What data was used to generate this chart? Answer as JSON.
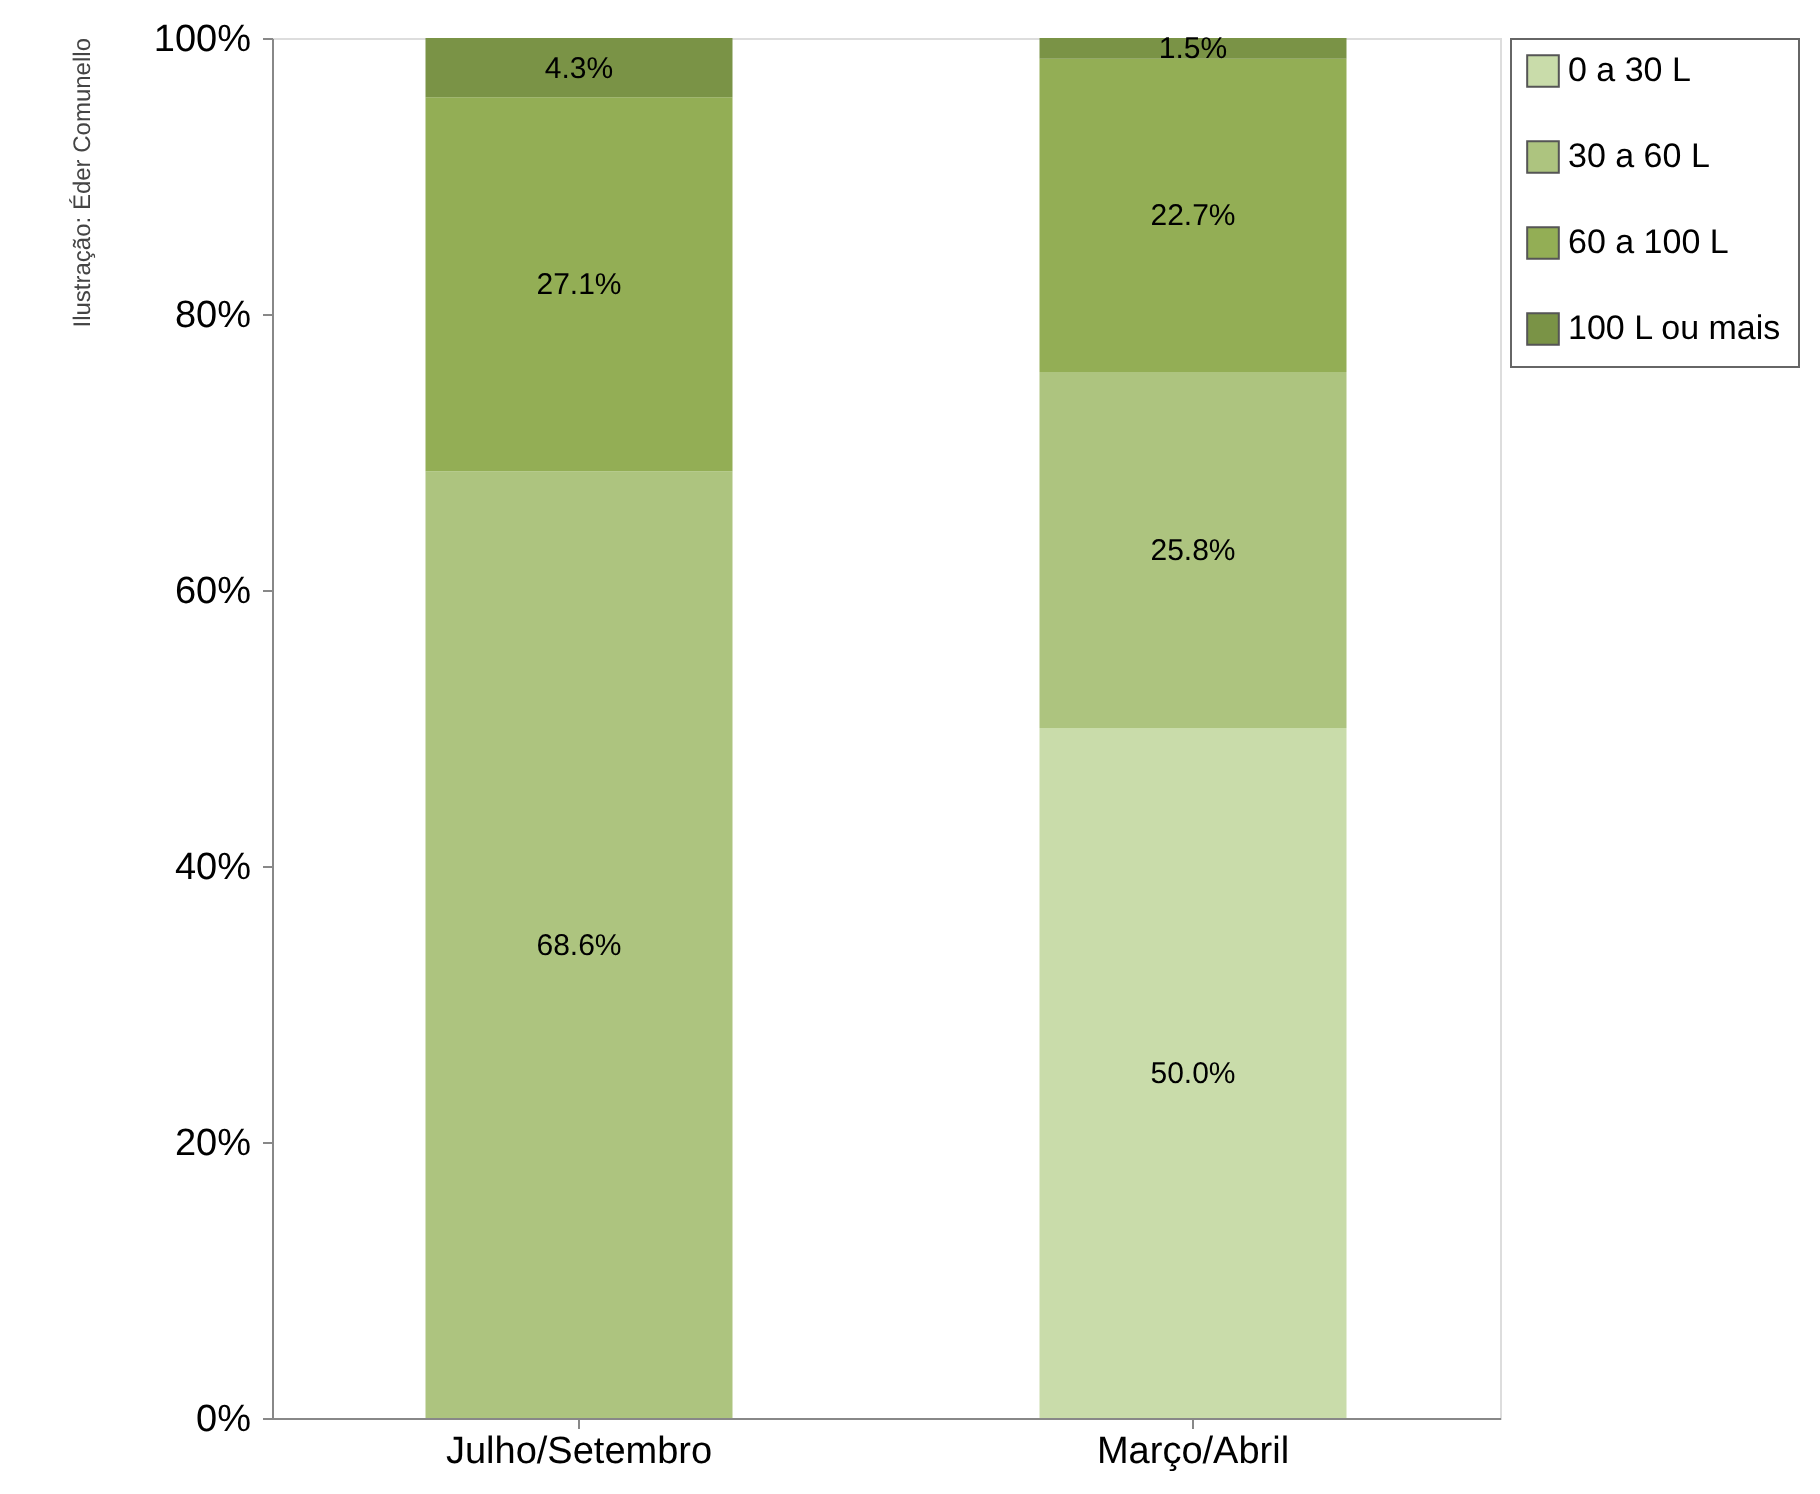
{
  "chart_data": {
    "type": "bar",
    "stacked": true,
    "categories": [
      "Julho/Setembro",
      "Março/Abril"
    ],
    "series": [
      {
        "name": "0 a 30 L",
        "color": "#c9dcaa",
        "values": [
          0,
          50.0
        ],
        "value_labels": [
          null,
          "50.0%"
        ]
      },
      {
        "name": "30 a 60 L",
        "color": "#adc47f",
        "values": [
          68.6,
          25.8
        ],
        "value_labels": [
          "68.6%",
          "25.8%"
        ]
      },
      {
        "name": "60 a 100 L",
        "color": "#93ae55",
        "values": [
          27.1,
          22.7
        ],
        "value_labels": [
          "27.1%",
          "22.7%"
        ]
      },
      {
        "name": "100 L ou mais",
        "color": "#7a9346",
        "values": [
          4.3,
          1.5
        ],
        "value_labels": [
          "4.3%",
          "1.5%"
        ]
      }
    ],
    "ylim": [
      0,
      100
    ],
    "yticks": [
      {
        "value": 0,
        "label": "0%"
      },
      {
        "value": 20,
        "label": "20%"
      },
      {
        "value": 40,
        "label": "40%"
      },
      {
        "value": 60,
        "label": "60%"
      },
      {
        "value": 80,
        "label": "80%"
      },
      {
        "value": 100,
        "label": "100%"
      }
    ],
    "grid": false,
    "legend": "right",
    "annotations": [
      "Ilustração: Éder Comunello"
    ]
  }
}
